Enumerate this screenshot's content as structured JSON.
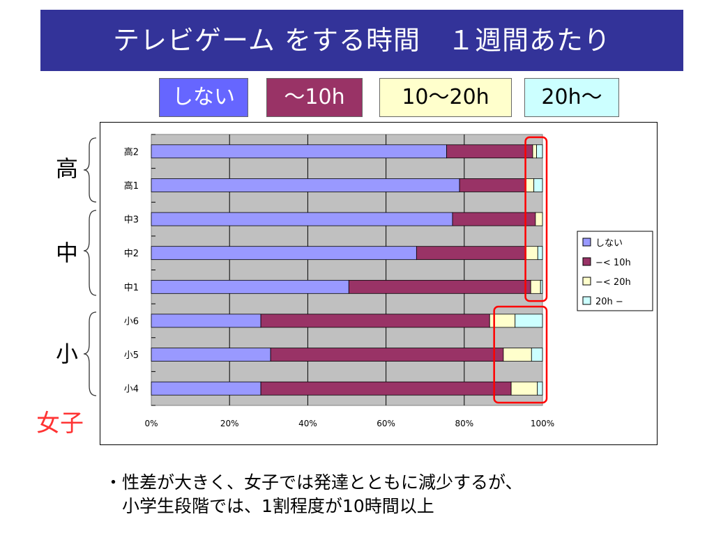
{
  "header": {
    "title": "テレビゲーム をする時間　１週間あたり"
  },
  "top_legend": [
    {
      "label": "しない",
      "bg": "#6666ff",
      "fg": "#ffffff"
    },
    {
      "label": "〜10h",
      "bg": "#993366",
      "fg": "#ffffff"
    },
    {
      "label": "10〜20h",
      "bg": "#ffffcc",
      "fg": "#000000"
    },
    {
      "label": "20h〜",
      "bg": "#ccffff",
      "fg": "#000000"
    }
  ],
  "groups": [
    {
      "label": "高"
    },
    {
      "label": "中"
    },
    {
      "label": "小"
    }
  ],
  "girls_label": "女子",
  "notes": [
    "・性差が大きく、女子では発達とともに減少するが、",
    "　小学生段階では、1割程度が10時間以上"
  ],
  "chart_data": {
    "type": "bar",
    "orientation": "horizontal",
    "stacked": "percent",
    "categories": [
      "高2",
      "高1",
      "中3",
      "中2",
      "中1",
      "小6",
      "小5",
      "小4"
    ],
    "series": [
      {
        "name": "しない",
        "color": "#9999ff",
        "values": [
          75.5,
          78.8,
          77.0,
          67.8,
          50.5,
          28.0,
          30.5,
          28.0
        ]
      },
      {
        "name": "−< 10h",
        "color": "#993366",
        "values": [
          22.0,
          17.0,
          21.2,
          28.0,
          46.5,
          58.5,
          59.5,
          64.0
        ]
      },
      {
        "name": "−< 20h",
        "color": "#ffffcc",
        "values": [
          1.0,
          2.0,
          1.8,
          3.0,
          2.5,
          6.5,
          7.2,
          6.7
        ]
      },
      {
        "name": "20h −",
        "color": "#ccffff",
        "values": [
          1.5,
          2.2,
          0.0,
          1.2,
          0.5,
          7.0,
          2.8,
          1.3
        ]
      }
    ],
    "x_ticks": [
      "0%",
      "20%",
      "40%",
      "60%",
      "80%",
      "100%"
    ],
    "xlim": [
      0,
      100
    ],
    "plot_background": "#c0c0c0",
    "legend_position": "right",
    "highlights": [
      {
        "from_category": "高2",
        "to_category": "中1",
        "x_start": 96,
        "x_end": 100,
        "color": "#ff0000"
      },
      {
        "from_category": "小6",
        "to_category": "小4",
        "x_start": 88,
        "x_end": 100,
        "color": "#ff0000"
      }
    ]
  }
}
